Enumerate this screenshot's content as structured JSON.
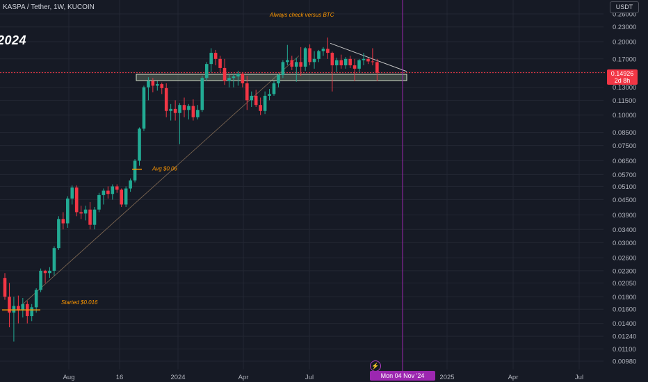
{
  "header": {
    "symbol_title": "KASPA / Tether, 1W, KUCOIN",
    "year_watermark": "2024",
    "currency_label": "USDT"
  },
  "price_tag": {
    "price": "0.14926",
    "countdown": "2d 8h"
  },
  "crosshair": {
    "date_label": "Mon 04 Nov '24",
    "lightning_icon": "lightning-icon"
  },
  "colors": {
    "up": "#22ab94",
    "down": "#f23645",
    "grid": "#232733",
    "annotation": "#ff9800",
    "crosshair": "#9c27b0",
    "trendline": "#c8c8c8"
  },
  "chart_data": {
    "type": "candlestick",
    "title": "KASPA / Tether, 1W, KUCOIN",
    "y_scale": "log",
    "ylim": [
      0.0092,
      0.27
    ],
    "x_tick_labels": [
      "Aug",
      "16",
      "2024",
      "Apr",
      "Jul",
      "2025",
      "Apr",
      "Jul"
    ],
    "y_tick_labels": [
      "0.26000",
      "0.23000",
      "0.20000",
      "0.17000",
      "0.15000",
      "0.13000",
      "0.11500",
      "0.10000",
      "0.08500",
      "0.07500",
      "0.06500",
      "0.05700",
      "0.05100",
      "0.04500",
      "0.03900",
      "0.03400",
      "0.03000",
      "0.02600",
      "0.02300",
      "0.02050",
      "0.01800",
      "0.01600",
      "0.01400",
      "0.01240",
      "0.01100",
      "0.00980"
    ],
    "y_tick_values": [
      0.26,
      0.23,
      0.2,
      0.17,
      0.15,
      0.13,
      0.115,
      0.1,
      0.085,
      0.075,
      0.065,
      0.057,
      0.051,
      0.045,
      0.039,
      0.034,
      0.03,
      0.026,
      0.023,
      0.0205,
      0.018,
      0.016,
      0.014,
      0.0124,
      0.011,
      0.0098
    ],
    "current_price": 0.14926,
    "candles": [
      {
        "o": 0.0215,
        "h": 0.0225,
        "l": 0.0175,
        "c": 0.018
      },
      {
        "o": 0.018,
        "h": 0.0205,
        "l": 0.0135,
        "c": 0.0155
      },
      {
        "o": 0.0155,
        "h": 0.018,
        "l": 0.0118,
        "c": 0.0165
      },
      {
        "o": 0.0165,
        "h": 0.0182,
        "l": 0.014,
        "c": 0.0158
      },
      {
        "o": 0.0158,
        "h": 0.0178,
        "l": 0.0148,
        "c": 0.0168
      },
      {
        "o": 0.0168,
        "h": 0.0173,
        "l": 0.014,
        "c": 0.015
      },
      {
        "o": 0.015,
        "h": 0.0168,
        "l": 0.0143,
        "c": 0.0163
      },
      {
        "o": 0.0163,
        "h": 0.0195,
        "l": 0.0155,
        "c": 0.0192
      },
      {
        "o": 0.0192,
        "h": 0.0235,
        "l": 0.0188,
        "c": 0.023
      },
      {
        "o": 0.023,
        "h": 0.0232,
        "l": 0.0205,
        "c": 0.0225
      },
      {
        "o": 0.0225,
        "h": 0.0238,
        "l": 0.0215,
        "c": 0.023
      },
      {
        "o": 0.023,
        "h": 0.029,
        "l": 0.022,
        "c": 0.0285
      },
      {
        "o": 0.0285,
        "h": 0.0385,
        "l": 0.028,
        "c": 0.0375
      },
      {
        "o": 0.0375,
        "h": 0.04,
        "l": 0.034,
        "c": 0.036
      },
      {
        "o": 0.036,
        "h": 0.0465,
        "l": 0.0345,
        "c": 0.0455
      },
      {
        "o": 0.0455,
        "h": 0.0515,
        "l": 0.043,
        "c": 0.0505
      },
      {
        "o": 0.0505,
        "h": 0.0515,
        "l": 0.0385,
        "c": 0.04
      },
      {
        "o": 0.04,
        "h": 0.0425,
        "l": 0.0375,
        "c": 0.0395
      },
      {
        "o": 0.0395,
        "h": 0.0425,
        "l": 0.037,
        "c": 0.041
      },
      {
        "o": 0.041,
        "h": 0.044,
        "l": 0.034,
        "c": 0.0355
      },
      {
        "o": 0.0355,
        "h": 0.042,
        "l": 0.034,
        "c": 0.041
      },
      {
        "o": 0.041,
        "h": 0.048,
        "l": 0.04,
        "c": 0.047
      },
      {
        "o": 0.047,
        "h": 0.05,
        "l": 0.043,
        "c": 0.049
      },
      {
        "o": 0.049,
        "h": 0.051,
        "l": 0.0455,
        "c": 0.0475
      },
      {
        "o": 0.0475,
        "h": 0.052,
        "l": 0.045,
        "c": 0.051
      },
      {
        "o": 0.051,
        "h": 0.052,
        "l": 0.048,
        "c": 0.0495
      },
      {
        "o": 0.0495,
        "h": 0.05,
        "l": 0.042,
        "c": 0.043
      },
      {
        "o": 0.043,
        "h": 0.051,
        "l": 0.042,
        "c": 0.05
      },
      {
        "o": 0.05,
        "h": 0.055,
        "l": 0.0485,
        "c": 0.054
      },
      {
        "o": 0.054,
        "h": 0.066,
        "l": 0.053,
        "c": 0.065
      },
      {
        "o": 0.065,
        "h": 0.089,
        "l": 0.062,
        "c": 0.088
      },
      {
        "o": 0.088,
        "h": 0.132,
        "l": 0.086,
        "c": 0.13
      },
      {
        "o": 0.13,
        "h": 0.143,
        "l": 0.115,
        "c": 0.138
      },
      {
        "o": 0.138,
        "h": 0.142,
        "l": 0.124,
        "c": 0.132
      },
      {
        "o": 0.132,
        "h": 0.138,
        "l": 0.126,
        "c": 0.134
      },
      {
        "o": 0.134,
        "h": 0.136,
        "l": 0.122,
        "c": 0.129
      },
      {
        "o": 0.129,
        "h": 0.135,
        "l": 0.098,
        "c": 0.104
      },
      {
        "o": 0.104,
        "h": 0.111,
        "l": 0.095,
        "c": 0.106
      },
      {
        "o": 0.106,
        "h": 0.115,
        "l": 0.095,
        "c": 0.102
      },
      {
        "o": 0.102,
        "h": 0.112,
        "l": 0.076,
        "c": 0.11
      },
      {
        "o": 0.11,
        "h": 0.118,
        "l": 0.098,
        "c": 0.105
      },
      {
        "o": 0.105,
        "h": 0.111,
        "l": 0.096,
        "c": 0.109
      },
      {
        "o": 0.109,
        "h": 0.116,
        "l": 0.095,
        "c": 0.098
      },
      {
        "o": 0.098,
        "h": 0.11,
        "l": 0.096,
        "c": 0.105
      },
      {
        "o": 0.105,
        "h": 0.145,
        "l": 0.103,
        "c": 0.142
      },
      {
        "o": 0.142,
        "h": 0.165,
        "l": 0.138,
        "c": 0.162
      },
      {
        "o": 0.162,
        "h": 0.188,
        "l": 0.15,
        "c": 0.18
      },
      {
        "o": 0.18,
        "h": 0.185,
        "l": 0.16,
        "c": 0.17
      },
      {
        "o": 0.17,
        "h": 0.175,
        "l": 0.15,
        "c": 0.156
      },
      {
        "o": 0.156,
        "h": 0.17,
        "l": 0.133,
        "c": 0.138
      },
      {
        "o": 0.138,
        "h": 0.148,
        "l": 0.13,
        "c": 0.142
      },
      {
        "o": 0.142,
        "h": 0.148,
        "l": 0.13,
        "c": 0.144
      },
      {
        "o": 0.144,
        "h": 0.152,
        "l": 0.132,
        "c": 0.148
      },
      {
        "o": 0.148,
        "h": 0.15,
        "l": 0.13,
        "c": 0.135
      },
      {
        "o": 0.135,
        "h": 0.145,
        "l": 0.105,
        "c": 0.115
      },
      {
        "o": 0.115,
        "h": 0.125,
        "l": 0.108,
        "c": 0.12
      },
      {
        "o": 0.12,
        "h": 0.127,
        "l": 0.108,
        "c": 0.11
      },
      {
        "o": 0.11,
        "h": 0.118,
        "l": 0.1,
        "c": 0.104
      },
      {
        "o": 0.104,
        "h": 0.125,
        "l": 0.101,
        "c": 0.12
      },
      {
        "o": 0.12,
        "h": 0.128,
        "l": 0.115,
        "c": 0.122
      },
      {
        "o": 0.122,
        "h": 0.138,
        "l": 0.12,
        "c": 0.135
      },
      {
        "o": 0.135,
        "h": 0.148,
        "l": 0.13,
        "c": 0.146
      },
      {
        "o": 0.146,
        "h": 0.168,
        "l": 0.142,
        "c": 0.165
      },
      {
        "o": 0.165,
        "h": 0.194,
        "l": 0.16,
        "c": 0.168
      },
      {
        "o": 0.168,
        "h": 0.175,
        "l": 0.153,
        "c": 0.158
      },
      {
        "o": 0.158,
        "h": 0.172,
        "l": 0.137,
        "c": 0.165
      },
      {
        "o": 0.165,
        "h": 0.19,
        "l": 0.145,
        "c": 0.158
      },
      {
        "o": 0.158,
        "h": 0.19,
        "l": 0.152,
        "c": 0.188
      },
      {
        "o": 0.188,
        "h": 0.195,
        "l": 0.16,
        "c": 0.165
      },
      {
        "o": 0.165,
        "h": 0.183,
        "l": 0.155,
        "c": 0.17
      },
      {
        "o": 0.17,
        "h": 0.185,
        "l": 0.165,
        "c": 0.183
      },
      {
        "o": 0.183,
        "h": 0.19,
        "l": 0.175,
        "c": 0.187
      },
      {
        "o": 0.187,
        "h": 0.208,
        "l": 0.17,
        "c": 0.18
      },
      {
        "o": 0.18,
        "h": 0.182,
        "l": 0.125,
        "c": 0.16
      },
      {
        "o": 0.16,
        "h": 0.172,
        "l": 0.15,
        "c": 0.168
      },
      {
        "o": 0.168,
        "h": 0.177,
        "l": 0.155,
        "c": 0.16
      },
      {
        "o": 0.16,
        "h": 0.173,
        "l": 0.155,
        "c": 0.17
      },
      {
        "o": 0.17,
        "h": 0.175,
        "l": 0.156,
        "c": 0.16
      },
      {
        "o": 0.16,
        "h": 0.17,
        "l": 0.138,
        "c": 0.155
      },
      {
        "o": 0.155,
        "h": 0.17,
        "l": 0.15,
        "c": 0.168
      },
      {
        "o": 0.168,
        "h": 0.18,
        "l": 0.16,
        "c": 0.17
      },
      {
        "o": 0.17,
        "h": 0.172,
        "l": 0.162,
        "c": 0.166
      },
      {
        "o": 0.166,
        "h": 0.188,
        "l": 0.16,
        "c": 0.165
      },
      {
        "o": 0.165,
        "h": 0.17,
        "l": 0.138,
        "c": 0.1493
      }
    ],
    "annotations": [
      {
        "text": "Always check versus BTC",
        "kind": "note"
      },
      {
        "text": "Avg $0.06",
        "kind": "level",
        "price": 0.06
      },
      {
        "text": "Started $0.016",
        "kind": "level",
        "price": 0.016
      }
    ],
    "support_zone": {
      "low": 0.1385,
      "high": 0.147
    },
    "descending_trendline": {
      "from": 0.197,
      "to": 0.151
    },
    "grid": true
  }
}
